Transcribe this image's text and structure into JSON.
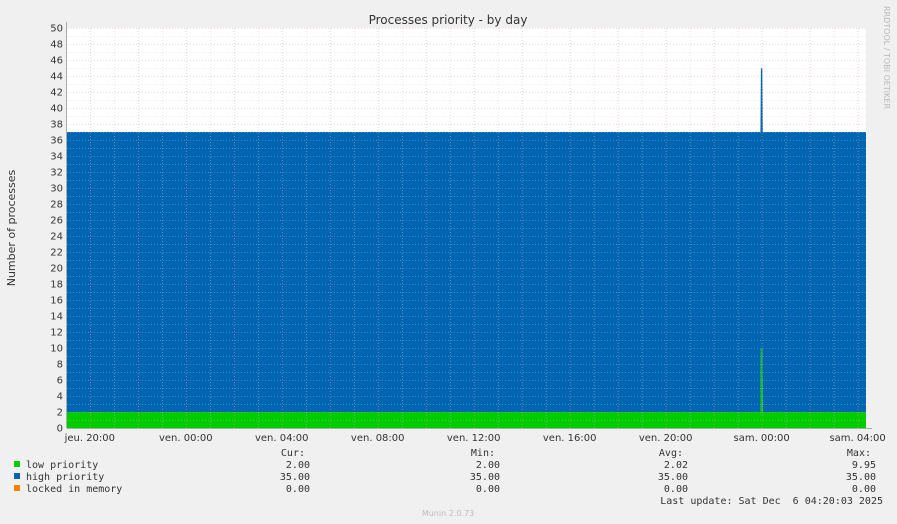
{
  "chart_data": {
    "type": "area",
    "title": "Processes priority - by day",
    "ylabel": "Number of processes",
    "watermark": "RRDTOOL / TOBI OETIKER",
    "footer": "Munin 2.0.73",
    "ylim": [
      0,
      50
    ],
    "yticks": [
      0,
      2,
      4,
      6,
      8,
      10,
      12,
      14,
      16,
      18,
      20,
      22,
      24,
      26,
      28,
      30,
      32,
      34,
      36,
      38,
      40,
      42,
      44,
      46,
      48,
      50
    ],
    "x_tick_labels": [
      "jeu. 20:00",
      "ven. 00:00",
      "ven. 04:00",
      "ven. 08:00",
      "ven. 12:00",
      "ven. 16:00",
      "ven. 20:00",
      "sam. 00:00",
      "sam. 04:00"
    ],
    "x_range_hours": [
      -0.95,
      32.35
    ],
    "x_tick_hours": [
      0,
      4,
      8,
      12,
      16,
      20,
      24,
      28,
      32
    ],
    "grid": true,
    "stacked": true,
    "x_hours": [
      -0.95,
      27.95,
      27.97,
      28.03,
      28.05,
      32.35
    ],
    "series": [
      {
        "name": "low priority",
        "color": "#00cc00",
        "values": [
          2,
          2,
          9.95,
          9.95,
          2,
          2
        ]
      },
      {
        "name": "high priority",
        "color": "#0066b3",
        "values": [
          35,
          35,
          35,
          35,
          35,
          35
        ]
      },
      {
        "name": "locked in memory",
        "color": "#ff8000",
        "values": [
          0,
          0,
          0,
          0,
          0,
          0
        ]
      }
    ],
    "legend": {
      "headers": [
        "Cur:",
        "Min:",
        "Avg:",
        "Max:"
      ],
      "rows": [
        {
          "label": "low priority",
          "color": "#00cc00",
          "cur": "2.00",
          "min": "2.00",
          "avg": "2.02",
          "max": "9.95"
        },
        {
          "label": "high priority",
          "color": "#0066b3",
          "cur": "35.00",
          "min": "35.00",
          "avg": "35.00",
          "max": "35.00"
        },
        {
          "label": "locked in memory",
          "color": "#ff8000",
          "cur": "0.00",
          "min": "0.00",
          "avg": "0.00",
          "max": "0.00"
        }
      ]
    },
    "last_update": "Last update: Sat Dec  6 04:20:03 2025"
  }
}
